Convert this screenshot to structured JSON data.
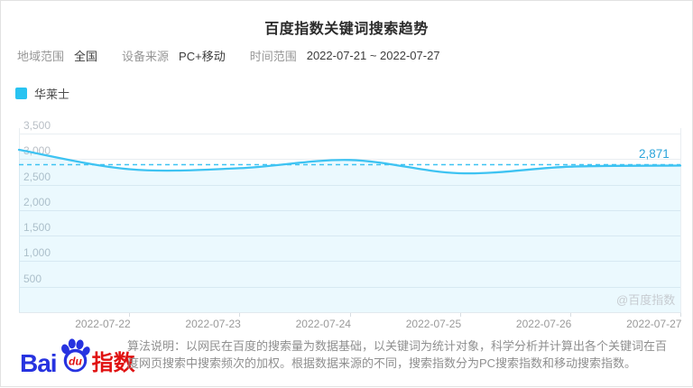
{
  "title": "百度指数关键词搜索趋势",
  "filters": {
    "region_label": "地域范围",
    "region_value": "全国",
    "device_label": "设备来源",
    "device_value": "PC+移动",
    "time_label": "时间范围",
    "time_value": "2022-07-21 ~ 2022-07-27"
  },
  "legend": {
    "label": "华莱士",
    "color": "#29c3f1"
  },
  "chart_data": {
    "type": "line",
    "title": "百度指数关键词搜索趋势",
    "series": [
      {
        "name": "华莱士",
        "values": [
          3180,
          2800,
          2820,
          2980,
          2720,
          2850,
          2871
        ]
      }
    ],
    "x": [
      "2022-07-21",
      "2022-07-22",
      "2022-07-23",
      "2022-07-24",
      "2022-07-25",
      "2022-07-26",
      "2022-07-27"
    ],
    "x_tick_labels": [
      "2022-07-22",
      "2022-07-23",
      "2022-07-24",
      "2022-07-25",
      "2022-07-26",
      "2022-07-27"
    ],
    "y_ticks": [
      500,
      1000,
      1500,
      2000,
      2500,
      3000,
      3500
    ],
    "ylim": [
      0,
      3800
    ],
    "smooth": true,
    "grid": true,
    "average_dashed_line": true,
    "end_label": "2,871",
    "line_color": "#3ec3f2",
    "area_fill_color": "rgba(62,195,242,0.10)",
    "legend_position": "top-left"
  },
  "watermark": "@百度指数",
  "footer": {
    "logo_bai": "Bai",
    "logo_du": "du",
    "logo_suffix": "指数",
    "algorithm_note": "算法说明：以网民在百度的搜索量为数据基础，以关键词为统计对象，科学分析并计算出各个关键词在百度网页搜索中搜索频次的加权。根据数据来源的不同，搜索指数分为PC搜索指数和移动搜索指数。"
  }
}
